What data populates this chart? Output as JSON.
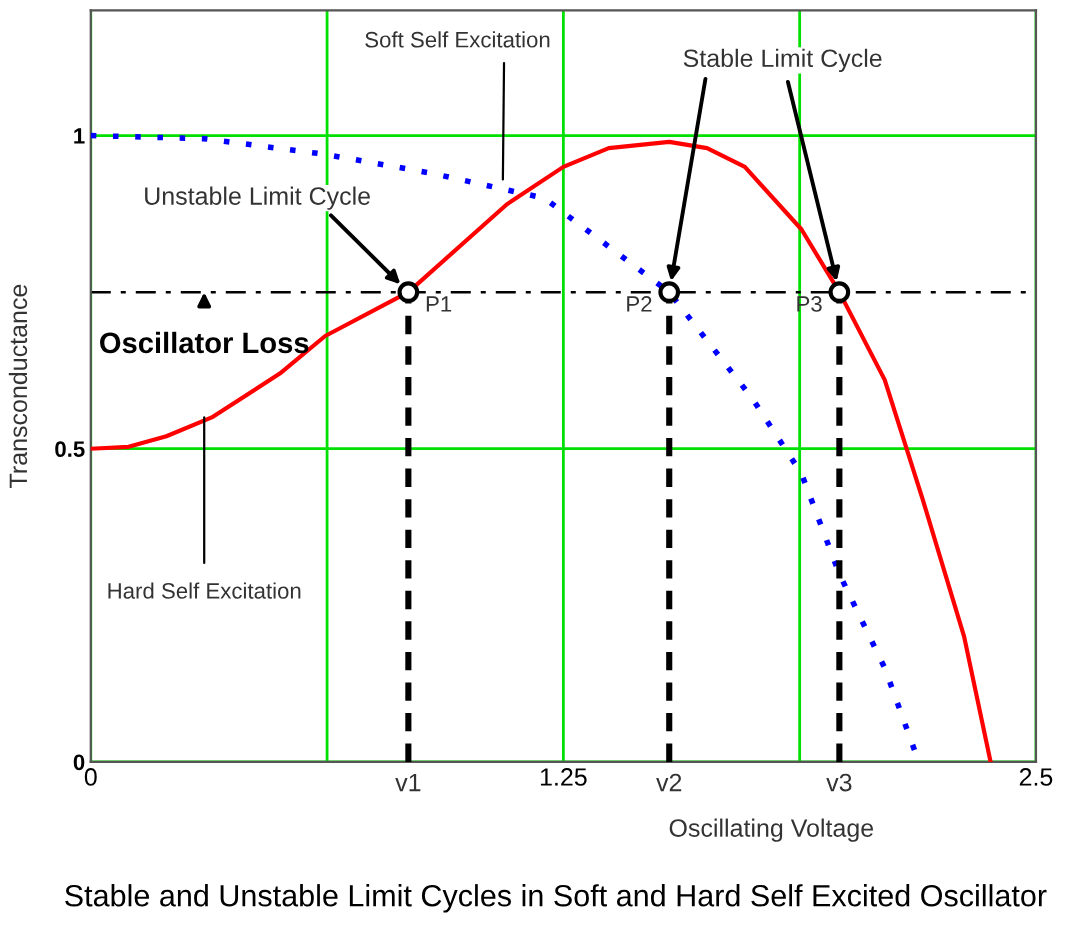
{
  "chart_data": {
    "type": "line",
    "title": "Stable and Unstable Limit Cycles in Soft and Hard Self Excited Oscillator",
    "xlabel": "Oscillating Voltage",
    "ylabel": "Transconductance",
    "xlim": [
      0,
      2.5
    ],
    "ylim": [
      0,
      1.2
    ],
    "xticks": [
      0,
      {
        "value": 0.625,
        "label": null
      },
      1.25,
      {
        "value": 1.875,
        "label": null
      },
      2.5
    ],
    "yticks": [
      0,
      {
        "value": 0.5,
        "label": "0.5"
      },
      1
    ],
    "grid": true,
    "ref_lines": [
      {
        "axis": "y",
        "value": 0.75,
        "color": "#000000",
        "line_style": "dashdot"
      }
    ],
    "series": [
      {
        "color": "#ff0000",
        "line_style": "solid",
        "x": [
          0,
          0.1,
          0.2,
          0.32,
          0.5,
          0.62,
          0.84,
          1.1,
          1.25,
          1.37,
          1.53,
          1.63,
          1.73,
          1.88,
          1.98,
          2.1,
          2.2,
          2.31,
          2.38
        ],
        "values": [
          0.5,
          0.503,
          0.52,
          0.55,
          0.62,
          0.68,
          0.75,
          0.89,
          0.95,
          0.98,
          0.99,
          0.98,
          0.95,
          0.85,
          0.75,
          0.61,
          0.42,
          0.2,
          0
        ]
      },
      {
        "color": "#0000ff",
        "line_style": "dotted",
        "x": [
          0,
          0.3,
          0.62,
          0.9,
          1.2,
          1.53,
          1.75,
          1.88,
          1.98,
          2.1,
          2.19
        ],
        "values": [
          1.0,
          0.995,
          0.97,
          0.94,
          0.9,
          0.75,
          0.58,
          0.46,
          0.3,
          0.15,
          0
        ]
      },
      {
        "color": "#000000",
        "line_style": "dashed",
        "x": [
          0.84,
          0.84
        ],
        "values": [
          0,
          0.75
        ]
      },
      {
        "color": "#000000",
        "line_style": "dashed",
        "x": [
          1.53,
          1.53
        ],
        "values": [
          0,
          0.75
        ]
      },
      {
        "color": "#000000",
        "line_style": "dashed",
        "x": [
          1.98,
          1.98
        ],
        "values": [
          0,
          0.75
        ]
      },
      {
        "type": "scatter",
        "marker": "circle",
        "color": "#000000",
        "x": [
          0.84,
          1.53,
          1.98
        ],
        "values": [
          0.75,
          0.75,
          0.75
        ]
      }
    ],
    "annotations": [
      {
        "text": "Unstable Limit Cycle",
        "x": 0.84,
        "y": 0.75
      },
      {
        "text": "Stable Limit Cycle",
        "x": 1.53,
        "y": 0.75
      },
      {
        "text": "Soft Self Excitation",
        "x": 1.09,
        "y": 0.93
      },
      {
        "text": "Oscillator Loss",
        "x": 0.3,
        "y": 0.75
      },
      {
        "text": "Hard Self Excitation",
        "x": 0.3,
        "y": 0.55
      },
      {
        "text": "P1",
        "x": 0.84,
        "y": 0.75
      },
      {
        "text": "P2",
        "x": 1.53,
        "y": 0.75
      },
      {
        "text": "P3",
        "x": 1.98,
        "y": 0.75
      },
      {
        "text": "v1",
        "x": 0.84,
        "y": 0
      },
      {
        "text": "v2",
        "x": 1.53,
        "y": 0
      },
      {
        "text": "v3",
        "x": 1.98,
        "y": 0
      }
    ]
  }
}
